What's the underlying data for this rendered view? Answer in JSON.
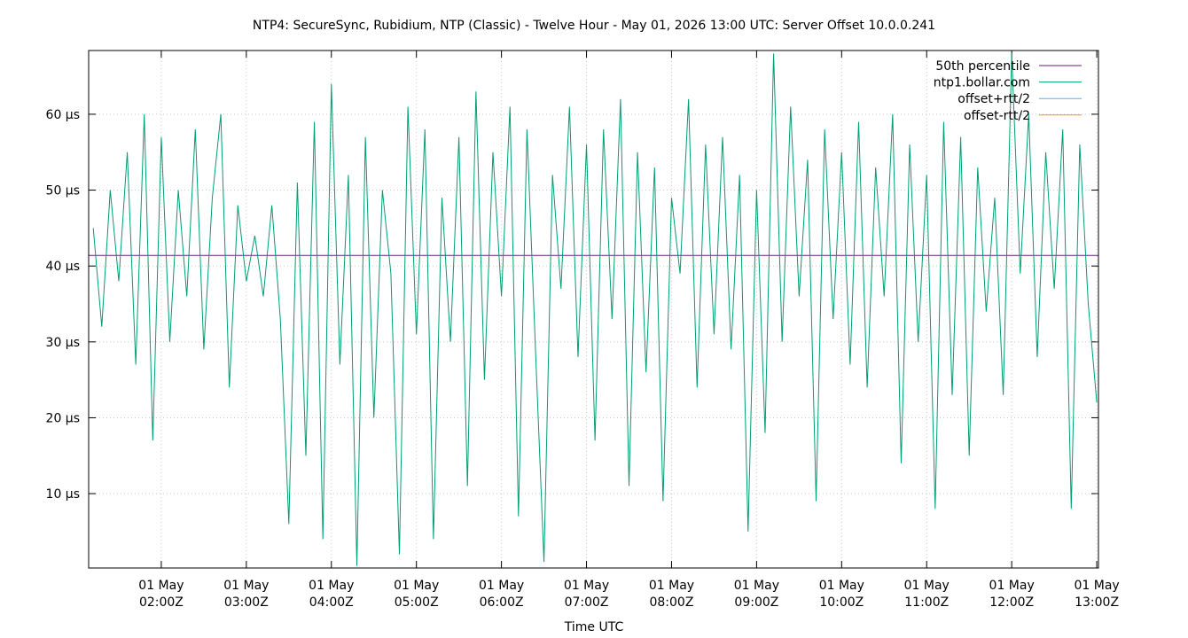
{
  "chart_data": {
    "type": "line",
    "title": "NTP4: SecureSync, Rubidium, NTP (Classic) - Twelve Hour - May 01, 2026 13:00 UTC: Server Offset 10.0.0.241",
    "x_label": "Time UTC",
    "xlim": [
      1.146,
      13.02
    ],
    "ylim": [
      0.2,
      68.4
    ],
    "xticks": [
      {
        "value": 2,
        "label": [
          "01 May",
          "02:00Z"
        ]
      },
      {
        "value": 3,
        "label": [
          "01 May",
          "03:00Z"
        ]
      },
      {
        "value": 4,
        "label": [
          "01 May",
          "04:00Z"
        ]
      },
      {
        "value": 5,
        "label": [
          "01 May",
          "05:00Z"
        ]
      },
      {
        "value": 6,
        "label": [
          "01 May",
          "06:00Z"
        ]
      },
      {
        "value": 7,
        "label": [
          "01 May",
          "07:00Z"
        ]
      },
      {
        "value": 8,
        "label": [
          "01 May",
          "08:00Z"
        ]
      },
      {
        "value": 9,
        "label": [
          "01 May",
          "09:00Z"
        ]
      },
      {
        "value": 10,
        "label": [
          "01 May",
          "10:00Z"
        ]
      },
      {
        "value": 11,
        "label": [
          "01 May",
          "11:00Z"
        ]
      },
      {
        "value": 12,
        "label": [
          "01 May",
          "12:00Z"
        ]
      },
      {
        "value": 13,
        "label": [
          "01 May",
          "13:00Z"
        ]
      }
    ],
    "yticks": [
      {
        "value": 10,
        "label": "10 µs"
      },
      {
        "value": 20,
        "label": "20 µs"
      },
      {
        "value": 30,
        "label": "30 µs"
      },
      {
        "value": 40,
        "label": "40 µs"
      },
      {
        "value": 50,
        "label": "50 µs"
      },
      {
        "value": 60,
        "label": "60 µs"
      }
    ],
    "grid": true,
    "legend": "top-right",
    "series": [
      {
        "name": "50th percentile",
        "color": "#6a1b7a",
        "x": [
          1.146,
          13.02
        ],
        "values": [
          41.4,
          41.4
        ]
      },
      {
        "name": "ntp1.bollar.com",
        "color": "#009e73",
        "x": [
          1.2,
          1.3,
          1.4,
          1.5,
          1.6,
          1.7,
          1.8,
          1.9,
          2.0,
          2.1,
          2.2,
          2.3,
          2.4,
          2.5,
          2.6,
          2.7,
          2.8,
          2.9,
          3.0,
          3.1,
          3.2,
          3.3,
          3.4,
          3.5,
          3.6,
          3.7,
          3.8,
          3.9,
          4.0,
          4.1,
          4.2,
          4.3,
          4.4,
          4.5,
          4.6,
          4.7,
          4.8,
          4.9,
          5.0,
          5.1,
          5.2,
          5.3,
          5.4,
          5.5,
          5.6,
          5.7,
          5.8,
          5.9,
          6.0,
          6.1,
          6.2,
          6.3,
          6.4,
          6.5,
          6.6,
          6.7,
          6.8,
          6.9,
          7.0,
          7.1,
          7.2,
          7.3,
          7.4,
          7.5,
          7.6,
          7.7,
          7.8,
          7.9,
          8.0,
          8.1,
          8.2,
          8.3,
          8.4,
          8.5,
          8.6,
          8.7,
          8.8,
          8.9,
          9.0,
          9.1,
          9.2,
          9.3,
          9.4,
          9.5,
          9.6,
          9.7,
          9.8,
          9.9,
          10.0,
          10.1,
          10.2,
          10.3,
          10.4,
          10.5,
          10.6,
          10.7,
          10.8,
          10.9,
          11.0,
          11.1,
          11.2,
          11.3,
          11.4,
          11.5,
          11.6,
          11.7,
          11.8,
          11.9,
          12.0,
          12.1,
          12.2,
          12.3,
          12.4,
          12.5,
          12.6,
          12.7,
          12.8,
          12.9,
          13.0
        ],
        "values": [
          45,
          32,
          50,
          38,
          55,
          27,
          60,
          17,
          57,
          30,
          50,
          36,
          58,
          29,
          49,
          60,
          24,
          48,
          38,
          44,
          36,
          48,
          33,
          6,
          51,
          15,
          59,
          4,
          64,
          27,
          52,
          0.5,
          57,
          20,
          50,
          39,
          2,
          61,
          31,
          58,
          4,
          49,
          30,
          57,
          11,
          63,
          25,
          55,
          36,
          61,
          7,
          58,
          29,
          1,
          52,
          37,
          61,
          28,
          56,
          17,
          58,
          33,
          62,
          11,
          55,
          26,
          53,
          9,
          49,
          39,
          62,
          24,
          56,
          31,
          57,
          29,
          52,
          5,
          50,
          18,
          68,
          30,
          61,
          36,
          54,
          9,
          58,
          33,
          55,
          27,
          59,
          24,
          53,
          36,
          60,
          14,
          56,
          30,
          52,
          8,
          59,
          23,
          57,
          15,
          53,
          34,
          49,
          23,
          68,
          39,
          60,
          28,
          55,
          37,
          58,
          8,
          56,
          35,
          22
        ]
      },
      {
        "name": "offset+rtt/2",
        "color": "#56b4e9"
      },
      {
        "name": "offset-rtt/2",
        "color": "#e69f00"
      }
    ]
  }
}
